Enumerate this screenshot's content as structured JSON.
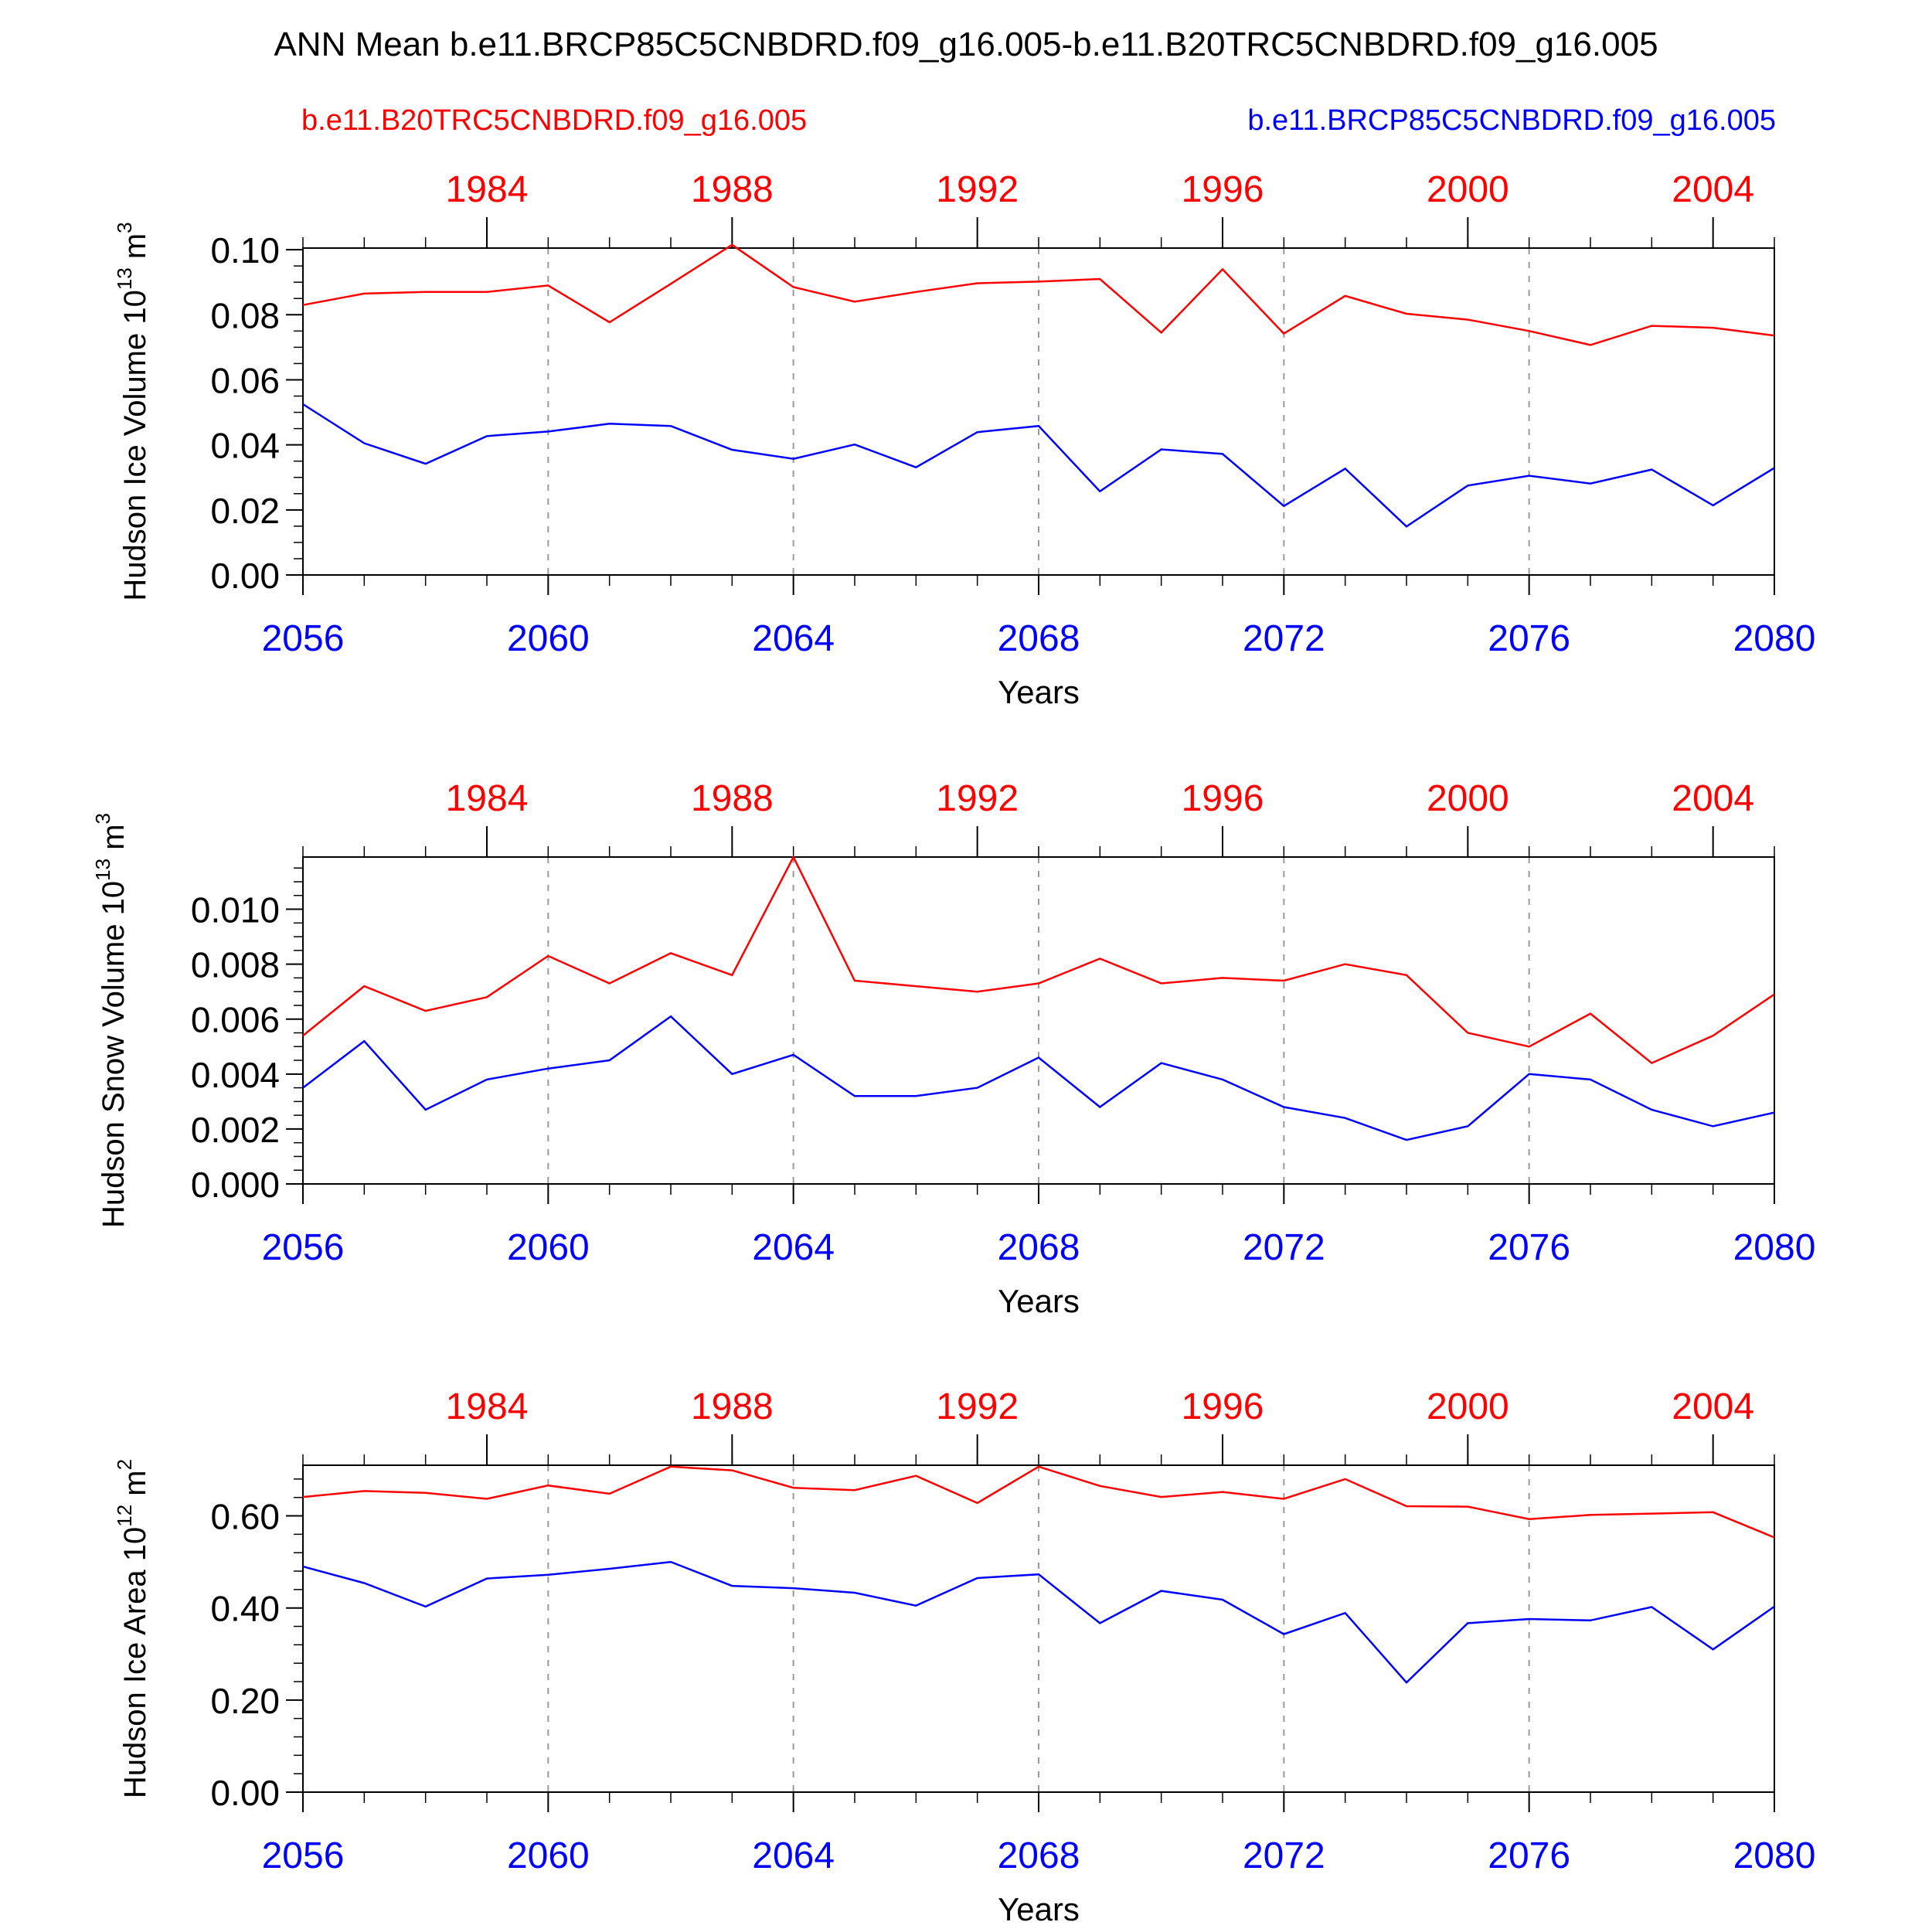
{
  "title": "ANN Mean b.e11.BRCP85C5CNBDRD.f09_g16.005-b.e11.B20TRC5CNBDRD.f09_g16.005",
  "legend_left": "b.e11.B20TRC5CNBDRD.f09_g16.005",
  "legend_right": "b.e11.BRCP85C5CNBDRD.f09_g16.005",
  "colors": {
    "red": "#ff0000",
    "blue": "#0000ff",
    "axis": "#000000",
    "grid": "#999999"
  },
  "chart_data": [
    {
      "type": "line",
      "ylabel_main": "Hudson Ice Volume 10",
      "ylabel_exp": "13",
      "ylabel_unit": " m",
      "ylabel_unit_exp": "3",
      "xlabel": "Years",
      "ylim": [
        0,
        0.1005
      ],
      "yticks": [
        0.0,
        0.02,
        0.04,
        0.06,
        0.08,
        0.1
      ],
      "ytick_labels": [
        "0.00",
        "0.02",
        "0.04",
        "0.06",
        "0.08",
        "0.10"
      ],
      "yminor_step": 0.005,
      "xlim": [
        2056,
        2080
      ],
      "xticks": [
        2056,
        2060,
        2064,
        2068,
        2072,
        2076,
        2080
      ],
      "xtick_labels": [
        "2056",
        "2060",
        "2064",
        "2068",
        "2072",
        "2076",
        "2080"
      ],
      "top_xlim": [
        1981,
        2005
      ],
      "top_xticks": [
        1984,
        1988,
        1992,
        1996,
        2000,
        2004
      ],
      "top_xtick_labels": [
        "1984",
        "1988",
        "1992",
        "1996",
        "2000",
        "2004"
      ],
      "series": [
        {
          "name": "b.e11.B20TRC5CNBDRD.f09_g16.005",
          "color": "#ff0000",
          "x": [
            1981,
            1982,
            1983,
            1984,
            1985,
            1986,
            1987,
            1988,
            1989,
            1990,
            1991,
            1992,
            1993,
            1994,
            1995,
            1996,
            1997,
            1998,
            1999,
            2000,
            2001,
            2002,
            2003,
            2004,
            2005
          ],
          "values": [
            0.083,
            0.0865,
            0.087,
            0.087,
            0.089,
            0.0777,
            0.0895,
            0.1015,
            0.0885,
            0.084,
            0.087,
            0.0897,
            0.0902,
            0.091,
            0.0745,
            0.094,
            0.0742,
            0.0858,
            0.0803,
            0.0785,
            0.075,
            0.0707,
            0.0766,
            0.076,
            0.0736
          ]
        },
        {
          "name": "b.e11.BRCP85C5CNBDRD.f09_g16.005",
          "color": "#0000ff",
          "x": [
            2056,
            2057,
            2058,
            2059,
            2060,
            2061,
            2062,
            2063,
            2064,
            2065,
            2066,
            2067,
            2068,
            2069,
            2070,
            2071,
            2072,
            2073,
            2074,
            2075,
            2076,
            2077,
            2078,
            2079,
            2080
          ],
          "values": [
            0.0525,
            0.0405,
            0.0342,
            0.0427,
            0.0441,
            0.0465,
            0.0458,
            0.0385,
            0.0357,
            0.0401,
            0.0331,
            0.0439,
            0.0458,
            0.0257,
            0.0386,
            0.0372,
            0.0212,
            0.0327,
            0.0149,
            0.0275,
            0.0305,
            0.0281,
            0.0324,
            0.0214,
            0.0329
          ]
        }
      ]
    },
    {
      "type": "line",
      "ylabel_main": "Hudson Snow Volume 10",
      "ylabel_exp": "13",
      "ylabel_unit": " m",
      "ylabel_unit_exp": "3",
      "xlabel": "Years",
      "ylim": [
        0,
        0.0119
      ],
      "yticks": [
        0.0,
        0.002,
        0.004,
        0.006,
        0.008,
        0.01
      ],
      "ytick_labels": [
        "0.000",
        "0.002",
        "0.004",
        "0.006",
        "0.008",
        "0.010"
      ],
      "yminor_step": 0.0005,
      "xlim": [
        2056,
        2080
      ],
      "xticks": [
        2056,
        2060,
        2064,
        2068,
        2072,
        2076,
        2080
      ],
      "xtick_labels": [
        "2056",
        "2060",
        "2064",
        "2068",
        "2072",
        "2076",
        "2080"
      ],
      "top_xlim": [
        1981,
        2005
      ],
      "top_xticks": [
        1984,
        1988,
        1992,
        1996,
        2000,
        2004
      ],
      "top_xtick_labels": [
        "1984",
        "1988",
        "1992",
        "1996",
        "2000",
        "2004"
      ],
      "series": [
        {
          "name": "b.e11.B20TRC5CNBDRD.f09_g16.005",
          "color": "#ff0000",
          "x": [
            1981,
            1982,
            1983,
            1984,
            1985,
            1986,
            1987,
            1988,
            1989,
            1990,
            1991,
            1992,
            1993,
            1994,
            1995,
            1996,
            1997,
            1998,
            1999,
            2000,
            2001,
            2002,
            2003,
            2004,
            2005
          ],
          "values": [
            0.0054,
            0.0072,
            0.0063,
            0.0068,
            0.0083,
            0.0073,
            0.0084,
            0.0076,
            0.0119,
            0.0074,
            0.0072,
            0.007,
            0.0073,
            0.0082,
            0.0073,
            0.0075,
            0.0074,
            0.008,
            0.0076,
            0.0055,
            0.005,
            0.0062,
            0.0044,
            0.0054,
            0.0069
          ]
        },
        {
          "name": "b.e11.BRCP85C5CNBDRD.f09_g16.005",
          "color": "#0000ff",
          "x": [
            2056,
            2057,
            2058,
            2059,
            2060,
            2061,
            2062,
            2063,
            2064,
            2065,
            2066,
            2067,
            2068,
            2069,
            2070,
            2071,
            2072,
            2073,
            2074,
            2075,
            2076,
            2077,
            2078,
            2079,
            2080
          ],
          "values": [
            0.0035,
            0.0052,
            0.0027,
            0.0038,
            0.0042,
            0.0045,
            0.0061,
            0.004,
            0.0047,
            0.0032,
            0.0032,
            0.0035,
            0.0046,
            0.0028,
            0.0044,
            0.0038,
            0.0028,
            0.0024,
            0.0016,
            0.0021,
            0.004,
            0.0038,
            0.0027,
            0.0021,
            0.0026
          ]
        }
      ]
    },
    {
      "type": "line",
      "ylabel_main": "Hudson Ice Area 10",
      "ylabel_exp": "12",
      "ylabel_unit": " m",
      "ylabel_unit_exp": "2",
      "xlabel": "Years",
      "ylim": [
        0,
        0.71
      ],
      "yticks": [
        0.0,
        0.2,
        0.4,
        0.6
      ],
      "ytick_labels": [
        "0.00",
        "0.20",
        "0.40",
        "0.60"
      ],
      "yminor_step": 0.04,
      "xlim": [
        2056,
        2080
      ],
      "xticks": [
        2056,
        2060,
        2064,
        2068,
        2072,
        2076,
        2080
      ],
      "xtick_labels": [
        "2056",
        "2060",
        "2064",
        "2068",
        "2072",
        "2076",
        "2080"
      ],
      "top_xlim": [
        1981,
        2005
      ],
      "top_xticks": [
        1984,
        1988,
        1992,
        1996,
        2000,
        2004
      ],
      "top_xtick_labels": [
        "1984",
        "1988",
        "1992",
        "1996",
        "2000",
        "2004"
      ],
      "series": [
        {
          "name": "b.e11.B20TRC5CNBDRD.f09_g16.005",
          "color": "#ff0000",
          "x": [
            1981,
            1982,
            1983,
            1984,
            1985,
            1986,
            1987,
            1988,
            1989,
            1990,
            1991,
            1992,
            1993,
            1994,
            1995,
            1996,
            1997,
            1998,
            1999,
            2000,
            2001,
            2002,
            2003,
            2004,
            2005
          ],
          "values": [
            0.641,
            0.654,
            0.65,
            0.637,
            0.666,
            0.648,
            0.707,
            0.699,
            0.661,
            0.656,
            0.687,
            0.628,
            0.707,
            0.665,
            0.641,
            0.652,
            0.637,
            0.68,
            0.621,
            0.62,
            0.593,
            0.602,
            0.605,
            0.608,
            0.553
          ]
        },
        {
          "name": "b.e11.BRCP85C5CNBDRD.f09_g16.005",
          "color": "#0000ff",
          "x": [
            2056,
            2057,
            2058,
            2059,
            2060,
            2061,
            2062,
            2063,
            2064,
            2065,
            2066,
            2067,
            2068,
            2069,
            2070,
            2071,
            2072,
            2073,
            2074,
            2075,
            2076,
            2077,
            2078,
            2079,
            2080
          ],
          "values": [
            0.49,
            0.454,
            0.403,
            0.464,
            0.472,
            0.485,
            0.5,
            0.448,
            0.443,
            0.433,
            0.405,
            0.465,
            0.473,
            0.367,
            0.437,
            0.418,
            0.343,
            0.389,
            0.238,
            0.367,
            0.376,
            0.373,
            0.402,
            0.31,
            0.403
          ]
        }
      ]
    }
  ]
}
